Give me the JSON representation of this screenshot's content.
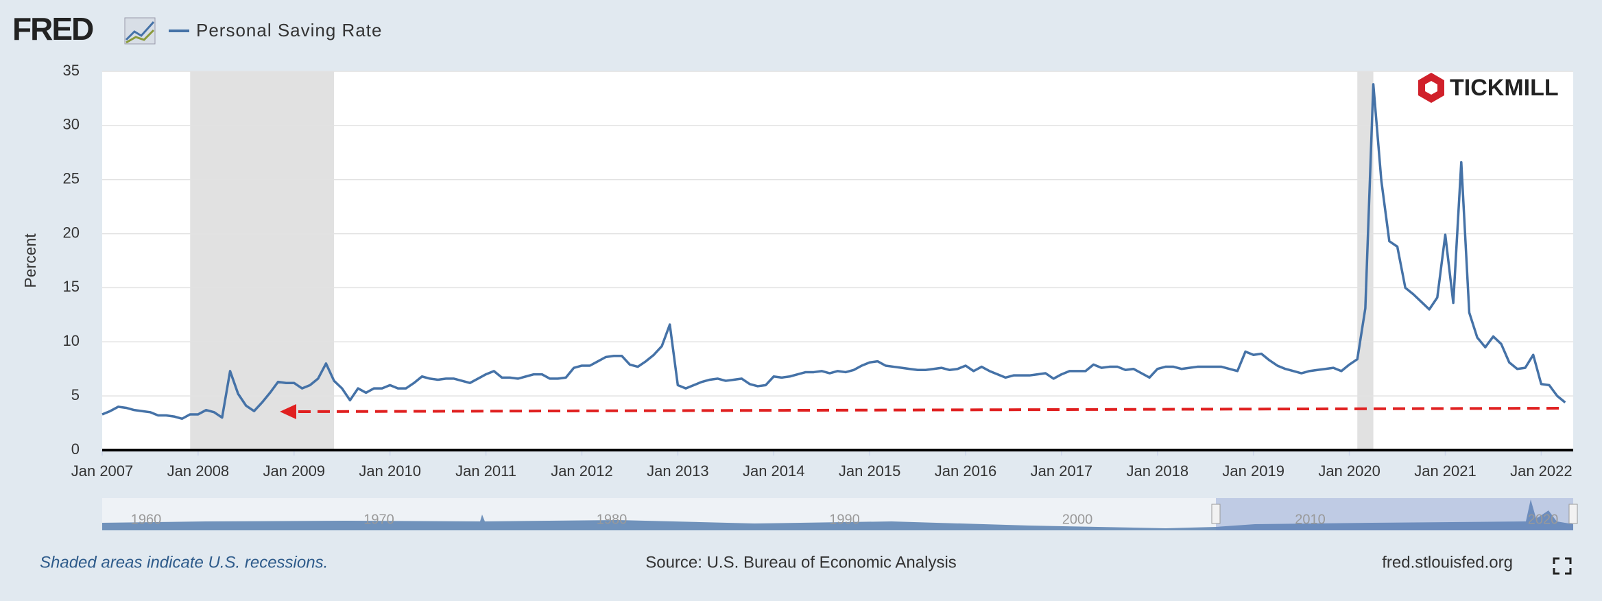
{
  "chart_data": {
    "type": "line",
    "logo": "FRED",
    "brand": "TICKMILL",
    "ylabel": "Percent",
    "footer_note": "Shaded areas indicate U.S. recessions.",
    "source": "Source: U.S. Bureau of Economic Analysis",
    "site": "fred.stlouisfed.org",
    "grid": true,
    "x": [
      "2007-01",
      "2007-02",
      "2007-03",
      "2007-04",
      "2007-05",
      "2007-06",
      "2007-07",
      "2007-08",
      "2007-09",
      "2007-10",
      "2007-11",
      "2007-12",
      "2008-01",
      "2008-02",
      "2008-03",
      "2008-04",
      "2008-05",
      "2008-06",
      "2008-07",
      "2008-08",
      "2008-09",
      "2008-10",
      "2008-11",
      "2008-12",
      "2009-01",
      "2009-02",
      "2009-03",
      "2009-04",
      "2009-05",
      "2009-06",
      "2009-07",
      "2009-08",
      "2009-09",
      "2009-10",
      "2009-11",
      "2009-12",
      "2010-01",
      "2010-02",
      "2010-03",
      "2010-04",
      "2010-05",
      "2010-06",
      "2010-07",
      "2010-08",
      "2010-09",
      "2010-10",
      "2010-11",
      "2010-12",
      "2011-01",
      "2011-02",
      "2011-03",
      "2011-04",
      "2011-05",
      "2011-06",
      "2011-07",
      "2011-08",
      "2011-09",
      "2011-10",
      "2011-11",
      "2011-12",
      "2012-01",
      "2012-02",
      "2012-03",
      "2012-04",
      "2012-05",
      "2012-06",
      "2012-07",
      "2012-08",
      "2012-09",
      "2012-10",
      "2012-11",
      "2012-12",
      "2013-01",
      "2013-02",
      "2013-03",
      "2013-04",
      "2013-05",
      "2013-06",
      "2013-07",
      "2013-08",
      "2013-09",
      "2013-10",
      "2013-11",
      "2013-12",
      "2014-01",
      "2014-02",
      "2014-03",
      "2014-04",
      "2014-05",
      "2014-06",
      "2014-07",
      "2014-08",
      "2014-09",
      "2014-10",
      "2014-11",
      "2014-12",
      "2015-01",
      "2015-02",
      "2015-03",
      "2015-04",
      "2015-05",
      "2015-06",
      "2015-07",
      "2015-08",
      "2015-09",
      "2015-10",
      "2015-11",
      "2015-12",
      "2016-01",
      "2016-02",
      "2016-03",
      "2016-04",
      "2016-05",
      "2016-06",
      "2016-07",
      "2016-08",
      "2016-09",
      "2016-10",
      "2016-11",
      "2016-12",
      "2017-01",
      "2017-02",
      "2017-03",
      "2017-04",
      "2017-05",
      "2017-06",
      "2017-07",
      "2017-08",
      "2017-09",
      "2017-10",
      "2017-11",
      "2017-12",
      "2018-01",
      "2018-02",
      "2018-03",
      "2018-04",
      "2018-05",
      "2018-06",
      "2018-07",
      "2018-08",
      "2018-09",
      "2018-10",
      "2018-11",
      "2018-12",
      "2019-01",
      "2019-02",
      "2019-03",
      "2019-04",
      "2019-05",
      "2019-06",
      "2019-07",
      "2019-08",
      "2019-09",
      "2019-10",
      "2019-11",
      "2019-12",
      "2020-01",
      "2020-02",
      "2020-03",
      "2020-04",
      "2020-05",
      "2020-06",
      "2020-07",
      "2020-08",
      "2020-09",
      "2020-10",
      "2020-11",
      "2020-12",
      "2021-01",
      "2021-02",
      "2021-03",
      "2021-04",
      "2021-05",
      "2021-06",
      "2021-07",
      "2021-08",
      "2021-09",
      "2021-10",
      "2021-11",
      "2021-12",
      "2022-01",
      "2022-02",
      "2022-03",
      "2022-04"
    ],
    "series": [
      {
        "name": "Personal Saving Rate",
        "color": "#4572a7",
        "values": [
          3.3,
          3.6,
          4.0,
          3.9,
          3.7,
          3.6,
          3.5,
          3.2,
          3.2,
          3.1,
          2.9,
          3.3,
          3.3,
          3.7,
          3.5,
          3.0,
          7.3,
          5.2,
          4.1,
          3.6,
          4.4,
          5.3,
          6.3,
          6.2,
          6.2,
          5.7,
          6.0,
          6.6,
          8.0,
          6.4,
          5.7,
          4.6,
          5.7,
          5.3,
          5.7,
          5.7,
          6.0,
          5.7,
          5.7,
          6.2,
          6.8,
          6.6,
          6.5,
          6.6,
          6.6,
          6.4,
          6.2,
          6.6,
          7.0,
          7.3,
          6.7,
          6.7,
          6.6,
          6.8,
          7.0,
          7.0,
          6.6,
          6.6,
          6.7,
          7.6,
          7.8,
          7.8,
          8.2,
          8.6,
          8.7,
          8.7,
          7.9,
          7.7,
          8.2,
          8.8,
          9.6,
          11.6,
          6.0,
          5.7,
          6.0,
          6.3,
          6.5,
          6.6,
          6.4,
          6.5,
          6.6,
          6.1,
          5.9,
          6.0,
          6.8,
          6.7,
          6.8,
          7.0,
          7.2,
          7.2,
          7.3,
          7.1,
          7.3,
          7.2,
          7.4,
          7.8,
          8.1,
          8.2,
          7.8,
          7.7,
          7.6,
          7.5,
          7.4,
          7.4,
          7.5,
          7.6,
          7.4,
          7.5,
          7.8,
          7.3,
          7.7,
          7.3,
          7.0,
          6.7,
          6.9,
          6.9,
          6.9,
          7.0,
          7.1,
          6.6,
          7.0,
          7.3,
          7.3,
          7.3,
          7.9,
          7.6,
          7.7,
          7.7,
          7.4,
          7.5,
          7.1,
          6.7,
          7.5,
          7.7,
          7.7,
          7.5,
          7.6,
          7.7,
          7.7,
          7.7,
          7.7,
          7.5,
          7.3,
          9.1,
          8.8,
          8.9,
          8.3,
          7.8,
          7.5,
          7.3,
          7.1,
          7.3,
          7.4,
          7.5,
          7.6,
          7.3,
          7.9,
          8.4,
          13.1,
          33.8,
          24.9,
          19.3,
          18.8,
          15.0,
          14.4,
          13.7,
          13.0,
          14.1,
          19.9,
          13.6,
          26.6,
          12.7,
          10.4,
          9.5,
          10.5,
          9.8,
          8.1,
          7.5,
          7.6,
          8.8,
          6.1,
          6.0,
          5.0,
          4.4
        ]
      }
    ],
    "recessions": [
      [
        "2007-12",
        "2009-06"
      ],
      [
        "2020-02",
        "2020-04"
      ]
    ],
    "xlim": [
      "2007-01",
      "2022-05"
    ],
    "xticks": [
      {
        "value": "2007-01",
        "label": "Jan 2007"
      },
      {
        "value": "2008-01",
        "label": "Jan 2008"
      },
      {
        "value": "2009-01",
        "label": "Jan 2009"
      },
      {
        "value": "2010-01",
        "label": "Jan 2010"
      },
      {
        "value": "2011-01",
        "label": "Jan 2011"
      },
      {
        "value": "2012-01",
        "label": "Jan 2012"
      },
      {
        "value": "2013-01",
        "label": "Jan 2013"
      },
      {
        "value": "2014-01",
        "label": "Jan 2014"
      },
      {
        "value": "2015-01",
        "label": "Jan 2015"
      },
      {
        "value": "2016-01",
        "label": "Jan 2016"
      },
      {
        "value": "2017-01",
        "label": "Jan 2017"
      },
      {
        "value": "2018-01",
        "label": "Jan 2018"
      },
      {
        "value": "2019-01",
        "label": "Jan 2019"
      },
      {
        "value": "2020-01",
        "label": "Jan 2020"
      },
      {
        "value": "2021-01",
        "label": "Jan 2021"
      },
      {
        "value": "2022-01",
        "label": "Jan 2022"
      }
    ],
    "ylim": [
      0,
      35
    ],
    "yticks": [
      0,
      5,
      10,
      15,
      20,
      25,
      30,
      35
    ],
    "navigator_labels": [
      "1960",
      "1970",
      "1980",
      "1990",
      "2000",
      "2010",
      "2020"
    ]
  }
}
